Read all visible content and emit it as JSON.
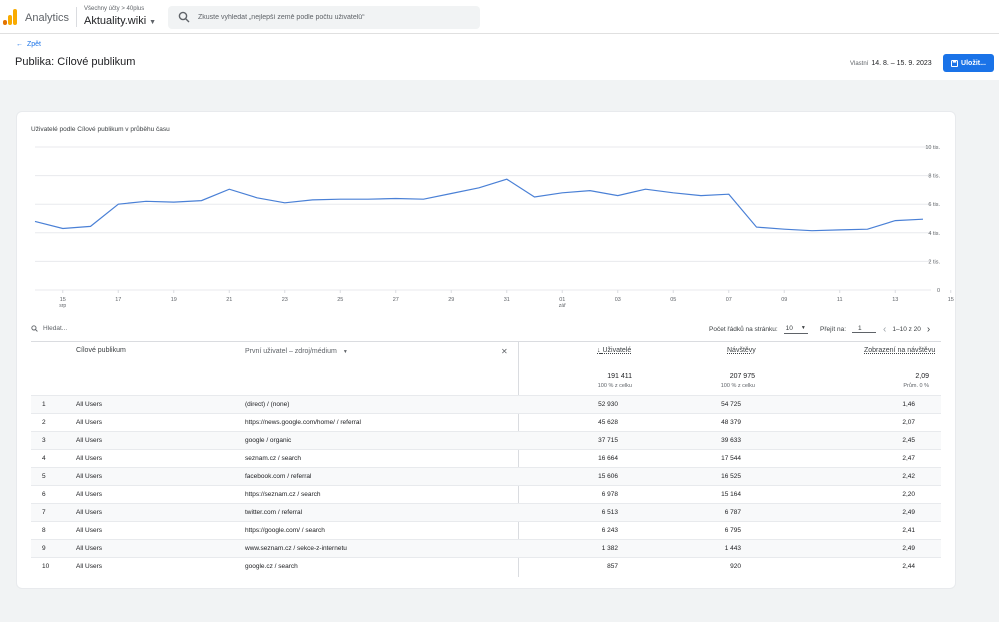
{
  "app": {
    "name": "Analytics",
    "account_path": "Všechny účty > 40plus",
    "account_name": "Aktuality.wiki"
  },
  "search": {
    "placeholder": "Zkuste vyhledat „nejlepší země podle počtu uživatelů“"
  },
  "header": {
    "back_label": "Zpět",
    "title": "Publika: Cílové publikum",
    "date_prefix": "Vlastní",
    "date_range": "14. 8. – 15. 9. 2023",
    "save_label": "Uložit..."
  },
  "chart_data": {
    "type": "line",
    "title": "Uživatelé podle Cílové publikum v průběhu času",
    "x_ticks": [
      {
        "label": "15",
        "sub": "srp"
      },
      {
        "label": "17",
        "sub": ""
      },
      {
        "label": "19",
        "sub": ""
      },
      {
        "label": "21",
        "sub": ""
      },
      {
        "label": "23",
        "sub": ""
      },
      {
        "label": "25",
        "sub": ""
      },
      {
        "label": "27",
        "sub": ""
      },
      {
        "label": "29",
        "sub": ""
      },
      {
        "label": "31",
        "sub": ""
      },
      {
        "label": "01",
        "sub": "zář"
      },
      {
        "label": "03",
        "sub": ""
      },
      {
        "label": "05",
        "sub": ""
      },
      {
        "label": "07",
        "sub": ""
      },
      {
        "label": "09",
        "sub": ""
      },
      {
        "label": "11",
        "sub": ""
      },
      {
        "label": "13",
        "sub": ""
      },
      {
        "label": "15",
        "sub": ""
      }
    ],
    "y_ticks": [
      "0",
      "2 tis.",
      "4 tis.",
      "6 tis.",
      "8 tis.",
      "10 tis."
    ],
    "ylim": [
      0,
      10000
    ],
    "grid": true,
    "series": [
      {
        "color": "#4a80d6",
        "x": [
          "14. 8.",
          "15. 8.",
          "16. 8.",
          "17. 8.",
          "18. 8.",
          "19. 8.",
          "20. 8.",
          "21. 8.",
          "22. 8.",
          "23. 8.",
          "24. 8.",
          "25. 8.",
          "26. 8.",
          "27. 8.",
          "28. 8.",
          "29. 8.",
          "30. 8.",
          "31. 8.",
          "1. 9.",
          "2. 9.",
          "3. 9.",
          "4. 9.",
          "5. 9.",
          "6. 9.",
          "7. 9.",
          "8. 9.",
          "9. 9.",
          "10. 9.",
          "11. 9.",
          "12. 9.",
          "13. 9.",
          "14. 9.",
          "15. 9."
        ],
        "values": [
          4800,
          4300,
          4450,
          6000,
          6200,
          6150,
          6250,
          7050,
          6450,
          6100,
          6300,
          6350,
          6350,
          6400,
          6350,
          6750,
          7150,
          7750,
          6500,
          6800,
          6950,
          6600,
          7050,
          6800,
          6600,
          6700,
          4400,
          4250,
          4150,
          4200,
          4250,
          4850,
          4950
        ]
      }
    ]
  },
  "toolbar": {
    "search_placeholder": "Hledat...",
    "rows_label": "Počet řádků na stránku:",
    "rows_value": "10",
    "goto_label": "Přejít na:",
    "goto_value": "1",
    "range_label": "1–10 z 20"
  },
  "table": {
    "col_audience": "Cílové publikum",
    "col_source": "První uživatel – zdroj/médium",
    "col_users": "Uživatelé",
    "col_sessions": "Návštěvy",
    "col_views": "Zobrazení na návštěvu",
    "totals": {
      "users": "191 411",
      "users_sub": "100 % z celku",
      "sessions": "207 975",
      "sessions_sub": "100 % z celku",
      "views": "2,09",
      "views_sub": "Prům. 0 %"
    },
    "rows": [
      {
        "n": "1",
        "aud": "All Users",
        "src": "(direct) / (none)",
        "users": "52 930",
        "sessions": "54 725",
        "views": "1,46"
      },
      {
        "n": "2",
        "aud": "All Users",
        "src": "https://news.google.com/home/ / referral",
        "users": "45 628",
        "sessions": "48 379",
        "views": "2,07"
      },
      {
        "n": "3",
        "aud": "All Users",
        "src": "google / organic",
        "users": "37 715",
        "sessions": "39 633",
        "views": "2,45"
      },
      {
        "n": "4",
        "aud": "All Users",
        "src": "seznam.cz / search",
        "users": "16 664",
        "sessions": "17 544",
        "views": "2,47"
      },
      {
        "n": "5",
        "aud": "All Users",
        "src": "facebook.com / referral",
        "users": "15 606",
        "sessions": "16 525",
        "views": "2,42"
      },
      {
        "n": "6",
        "aud": "All Users",
        "src": "https://seznam.cz / search",
        "users": "6 978",
        "sessions": "15 164",
        "views": "2,20"
      },
      {
        "n": "7",
        "aud": "All Users",
        "src": "twitter.com / referral",
        "users": "6 513",
        "sessions": "6 787",
        "views": "2,49"
      },
      {
        "n": "8",
        "aud": "All Users",
        "src": "https://google.com/ / search",
        "users": "6 243",
        "sessions": "6 795",
        "views": "2,41"
      },
      {
        "n": "9",
        "aud": "All Users",
        "src": "www.seznam.cz / sekce-z-internetu",
        "users": "1 382",
        "sessions": "1 443",
        "views": "2,49"
      },
      {
        "n": "10",
        "aud": "All Users",
        "src": "google.cz / search",
        "users": "857",
        "sessions": "920",
        "views": "2,44"
      }
    ]
  },
  "colors": {
    "accent": "#1a73e8",
    "line": "#4a80d6",
    "logo_orange": "#f9ab00",
    "logo_dark": "#e37400"
  }
}
